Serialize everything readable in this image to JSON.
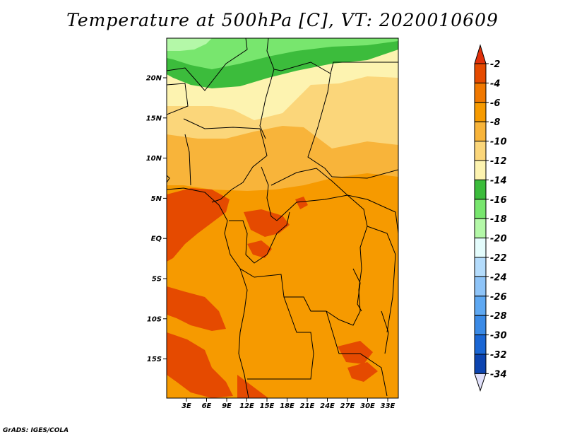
{
  "title": "Temperature at 500hPa [C], VT: 2020010609",
  "credit": "GrADS: IGES/COLA",
  "map": {
    "lat_labels": [
      "20N",
      "15N",
      "10N",
      "5N",
      "EQ",
      "5S",
      "10S",
      "15S"
    ],
    "lon_labels": [
      "3E",
      "6E",
      "9E",
      "12E",
      "15E",
      "18E",
      "21E",
      "24E",
      "27E",
      "30E",
      "33E"
    ]
  },
  "colorbar": {
    "labels": [
      "-2",
      "-4",
      "-6",
      "-8",
      "-10",
      "-12",
      "-14",
      "-16",
      "-18",
      "-20",
      "-22",
      "-24",
      "-26",
      "-28",
      "-30",
      "-32",
      "-34"
    ],
    "colors": [
      "#e54a00",
      "#f07800",
      "#f69a00",
      "#f8b43a",
      "#fbd67a",
      "#fdf3b0",
      "#3cbc3c",
      "#78e66e",
      "#b4f8a8",
      "#e4fcfc",
      "#b4dcfc",
      "#8ec4f8",
      "#5ea8f2",
      "#3a8ae6",
      "#1a66d4",
      "#0c44b0",
      "#0a1e7a"
    ],
    "top_color": "#e0300a",
    "bottom_color": "#e0e0fa"
  }
}
